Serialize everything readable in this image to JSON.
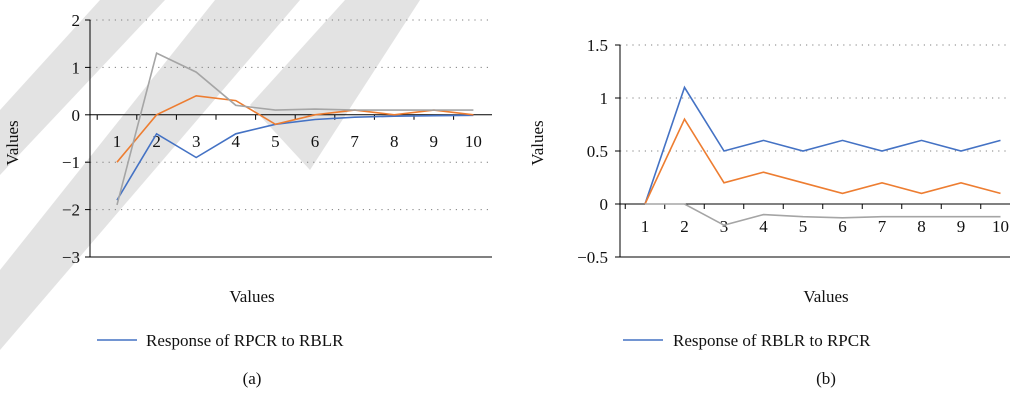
{
  "colors": {
    "blue": "#4472C4",
    "orange": "#ED7D31",
    "gray": "#A5A5A5",
    "watermark": "#D9D9D9",
    "axis": "#000000",
    "grid": "#7F7F7F"
  },
  "chart_data": [
    {
      "type": "line",
      "panel_label": "(a)",
      "xlabel": "Values",
      "ylabel": "Values",
      "x": [
        1,
        2,
        3,
        4,
        5,
        6,
        7,
        8,
        9,
        10
      ],
      "ylim": [
        -3,
        2
      ],
      "yticks": [
        -3,
        -2,
        -1,
        0,
        1,
        2
      ],
      "ytick_labels": [
        "−3",
        "−2",
        "−1",
        "0",
        "1",
        "2"
      ],
      "grid": "dotted horizontal",
      "legend_position": "bottom",
      "series": [
        {
          "name": "Response of RPCR to RBLR",
          "color_key": "blue",
          "values": [
            -1.8,
            -0.4,
            -0.9,
            -0.4,
            -0.2,
            -0.1,
            -0.05,
            -0.03,
            -0.02,
            -0.01
          ]
        },
        {
          "color_key": "orange",
          "values": [
            -1.0,
            0.0,
            0.4,
            0.3,
            -0.2,
            0.0,
            0.1,
            0.0,
            0.1,
            0.0
          ]
        },
        {
          "color_key": "gray",
          "values": [
            -1.9,
            1.3,
            0.9,
            0.2,
            0.1,
            0.12,
            0.1,
            0.1,
            0.1,
            0.1
          ]
        }
      ]
    },
    {
      "type": "line",
      "panel_label": "(b)",
      "xlabel": "Values",
      "ylabel": "Values",
      "x": [
        1,
        2,
        3,
        4,
        5,
        6,
        7,
        8,
        9,
        10
      ],
      "ylim": [
        -0.5,
        1.5
      ],
      "yticks": [
        -0.5,
        0,
        0.5,
        1,
        1.5
      ],
      "ytick_labels": [
        "−0.5",
        "0",
        "0.5",
        "1",
        "1.5"
      ],
      "grid": "dotted horizontal",
      "legend_position": "bottom",
      "series": [
        {
          "name": "Response of RBLR to RPCR",
          "color_key": "blue",
          "values": [
            0.0,
            1.1,
            0.5,
            0.6,
            0.5,
            0.6,
            0.5,
            0.6,
            0.5,
            0.6
          ]
        },
        {
          "color_key": "orange",
          "values": [
            0.0,
            0.8,
            0.2,
            0.3,
            0.2,
            0.1,
            0.2,
            0.1,
            0.2,
            0.1
          ]
        },
        {
          "color_key": "gray",
          "values": [
            0.0,
            0.0,
            -0.2,
            -0.1,
            -0.12,
            -0.13,
            -0.12,
            -0.12,
            -0.12,
            -0.12
          ]
        }
      ]
    }
  ]
}
